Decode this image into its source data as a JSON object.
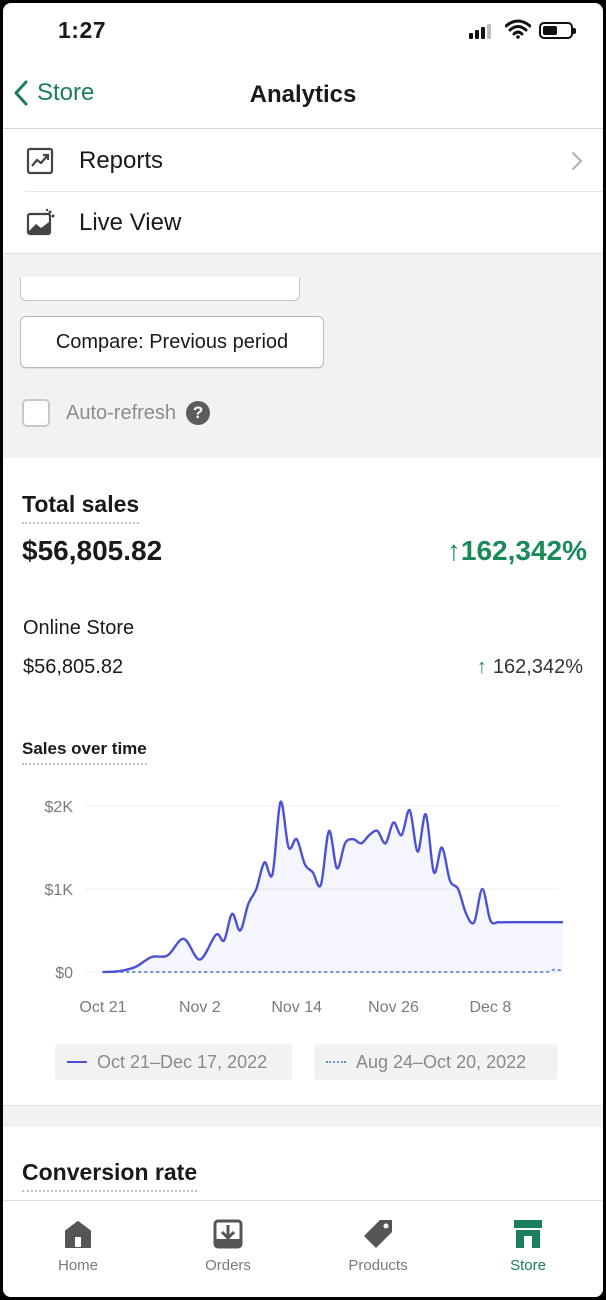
{
  "status_bar": {
    "time": "1:27"
  },
  "nav": {
    "back_label": "Store",
    "title": "Analytics"
  },
  "menu": [
    {
      "label": "Reports",
      "icon": "reports-icon"
    },
    {
      "label": "Live View",
      "icon": "live-view-icon"
    }
  ],
  "controls": {
    "compare_label": "Compare: Previous period",
    "auto_refresh_label": "Auto-refresh",
    "auto_refresh_checked": false
  },
  "total_sales": {
    "title": "Total sales",
    "value": "$56,805.82",
    "change": "162,342%",
    "change_arrow": "↑",
    "channel": {
      "name": "Online Store",
      "value": "$56,805.82",
      "change": "162,342%",
      "arrow": "↑"
    }
  },
  "chart_title": "Sales over time",
  "chart_data": {
    "type": "line",
    "x_tick_labels": [
      "Oct 21",
      "Nov 2",
      "Nov 14",
      "Nov 26",
      "Dec 8"
    ],
    "y_tick_labels": [
      "$2K",
      "$1K",
      "$0"
    ],
    "ylim": [
      0,
      2000
    ],
    "grid": true,
    "x_days": [
      0,
      2,
      4,
      6,
      8,
      10,
      12,
      14,
      15,
      16,
      17,
      18,
      19,
      20,
      21,
      22,
      23,
      24,
      25,
      26,
      27,
      28,
      29,
      30,
      31,
      32,
      33,
      34,
      35,
      36,
      37,
      38,
      39,
      40,
      41,
      42,
      43,
      44,
      45,
      46,
      47,
      48,
      49,
      50,
      51,
      52,
      53,
      54,
      55,
      56,
      57
    ],
    "series": [
      {
        "name": "Oct 21–Dec 17, 2022",
        "style": "solid",
        "color": "#4b52d3",
        "values": [
          0,
          10,
          60,
          180,
          200,
          400,
          150,
          450,
          380,
          700,
          500,
          820,
          1000,
          1320,
          1180,
          2050,
          1500,
          1600,
          1300,
          1200,
          1050,
          1700,
          1250,
          1550,
          1600,
          1550,
          1650,
          1700,
          1550,
          1800,
          1650,
          1950,
          1450,
          1900,
          1200,
          1500,
          1100,
          1000,
          700,
          600,
          1000,
          620,
          600,
          600,
          600,
          600,
          600,
          600,
          600,
          600,
          600
        ]
      },
      {
        "name": "Aug 24–Oct 20, 2022",
        "style": "dotted",
        "color": "#6d8fd6",
        "values": [
          0,
          0,
          0,
          0,
          0,
          0,
          0,
          0,
          0,
          0,
          0,
          0,
          0,
          0,
          0,
          0,
          0,
          0,
          0,
          0,
          0,
          0,
          0,
          0,
          0,
          0,
          0,
          0,
          0,
          0,
          0,
          0,
          0,
          0,
          0,
          0,
          0,
          0,
          0,
          0,
          0,
          0,
          0,
          0,
          0,
          0,
          0,
          0,
          0,
          30,
          10
        ]
      }
    ],
    "legend_position": "bottom"
  },
  "conversion": {
    "title": "Conversion rate"
  },
  "tabs": [
    {
      "label": "Home",
      "icon": "home-icon",
      "active": false
    },
    {
      "label": "Orders",
      "icon": "orders-icon",
      "active": false
    },
    {
      "label": "Products",
      "icon": "products-icon",
      "active": false
    },
    {
      "label": "Store",
      "icon": "store-icon",
      "active": true
    }
  ],
  "colors": {
    "accent": "#1b7e5a",
    "positive": "#1b8a5a",
    "chart_line": "#4b52d3"
  }
}
